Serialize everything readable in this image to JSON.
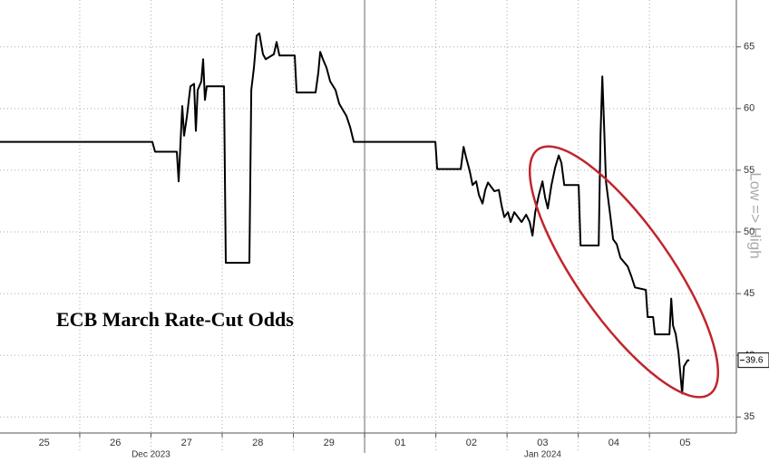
{
  "chart_data": {
    "type": "line",
    "title": "ECB March Rate-Cut Odds",
    "y_axis_label": "Low => High",
    "xlim": [
      -0.12,
      10.22
    ],
    "ylim": [
      33.7,
      68.8
    ],
    "yticks": [
      35,
      40,
      45,
      50,
      55,
      60,
      65
    ],
    "xticks": [
      {
        "value": 0.5,
        "label": "25"
      },
      {
        "value": 1.5,
        "label": "26"
      },
      {
        "value": 2.5,
        "label": "27"
      },
      {
        "value": 3.5,
        "label": "28"
      },
      {
        "value": 4.5,
        "label": "29"
      },
      {
        "value": 5.5,
        "label": "01"
      },
      {
        "value": 6.5,
        "label": "02"
      },
      {
        "value": 7.5,
        "label": "03"
      },
      {
        "value": 8.5,
        "label": "04"
      },
      {
        "value": 9.5,
        "label": "05"
      }
    ],
    "x_group_labels": [
      {
        "value": 2.0,
        "label": "Dec 2023"
      },
      {
        "value": 7.5,
        "label": "Jan 2024"
      }
    ],
    "grid": true,
    "series": [
      {
        "color": "#000000",
        "x": [
          -0.12,
          2.019,
          2.057,
          2.363,
          2.389,
          2.439,
          2.465,
          2.503,
          2.554,
          2.605,
          2.631,
          2.656,
          2.707,
          2.732,
          2.758,
          2.783,
          3.025,
          3.051,
          3.382,
          3.408,
          3.446,
          3.484,
          3.522,
          3.573,
          3.611,
          3.726,
          3.764,
          3.803,
          4.019,
          4.045,
          4.312,
          4.35,
          4.376,
          4.414,
          4.465,
          4.516,
          4.592,
          4.643,
          4.745,
          4.796,
          4.847,
          5.994,
          6.019,
          6.35,
          6.389,
          6.427,
          6.478,
          6.516,
          6.567,
          6.605,
          6.656,
          6.694,
          6.732,
          6.822,
          6.885,
          6.924,
          6.962,
          7.013,
          7.051,
          7.102,
          7.204,
          7.268,
          7.318,
          7.357,
          7.395,
          7.446,
          7.497,
          7.535,
          7.573,
          7.624,
          7.675,
          7.726,
          7.764,
          7.803,
          8.006,
          8.032,
          8.287,
          8.312,
          8.338,
          8.363,
          8.389,
          8.452,
          8.49,
          8.541,
          8.592,
          8.694,
          8.745,
          8.796,
          8.949,
          8.975,
          9.051,
          9.076,
          9.28,
          9.306,
          9.331,
          9.369,
          9.408,
          9.459,
          9.484,
          9.535,
          9.561
        ],
        "values": [
          57.3,
          57.3,
          56.5,
          56.5,
          54.1,
          60.2,
          57.8,
          59.3,
          61.8,
          62.0,
          58.2,
          61.5,
          62.2,
          64.0,
          60.7,
          61.8,
          61.8,
          47.5,
          47.5,
          61.5,
          63.3,
          65.9,
          66.1,
          64.4,
          64.0,
          64.4,
          65.4,
          64.3,
          64.3,
          61.3,
          61.3,
          62.9,
          64.6,
          64.0,
          63.3,
          62.2,
          61.5,
          60.4,
          59.4,
          58.5,
          57.3,
          57.3,
          55.1,
          55.1,
          56.9,
          56.0,
          54.9,
          53.8,
          54.1,
          53.0,
          52.3,
          53.4,
          54.0,
          53.3,
          53.4,
          52.1,
          51.2,
          51.6,
          50.8,
          51.6,
          50.8,
          51.4,
          50.8,
          49.7,
          51.6,
          53.0,
          54.1,
          52.8,
          51.9,
          53.8,
          55.2,
          56.2,
          55.6,
          53.8,
          53.8,
          48.9,
          48.9,
          57.8,
          62.6,
          58.5,
          54.1,
          51.2,
          49.4,
          49.0,
          47.9,
          47.2,
          46.4,
          45.5,
          45.3,
          43.1,
          43.1,
          41.7,
          41.7,
          44.6,
          42.4,
          41.7,
          40.2,
          36.9,
          39.1,
          39.6,
          39.6
        ]
      }
    ]
  }
}
